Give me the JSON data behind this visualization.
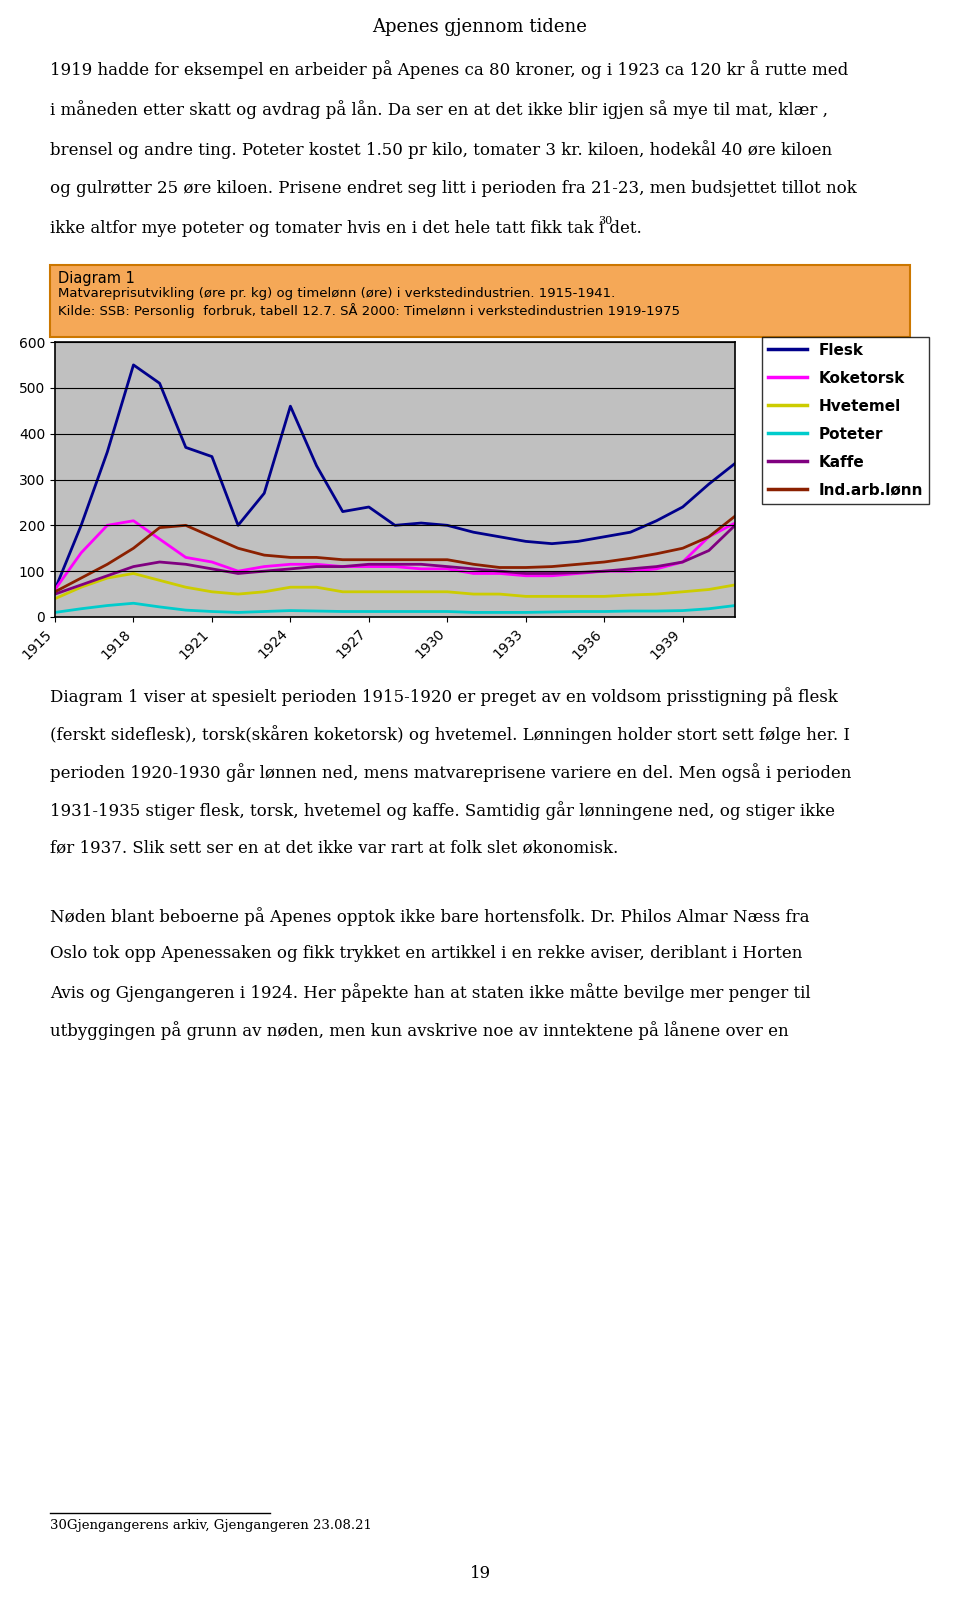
{
  "years": [
    1915,
    1916,
    1917,
    1918,
    1919,
    1920,
    1921,
    1922,
    1923,
    1924,
    1925,
    1926,
    1927,
    1928,
    1929,
    1930,
    1931,
    1932,
    1933,
    1934,
    1935,
    1936,
    1937,
    1938,
    1939,
    1940,
    1941
  ],
  "flesk": [
    60,
    200,
    360,
    550,
    510,
    370,
    350,
    200,
    270,
    460,
    330,
    230,
    240,
    200,
    205,
    200,
    185,
    175,
    165,
    160,
    165,
    175,
    185,
    210,
    240,
    290,
    335
  ],
  "koketorsk": [
    60,
    140,
    200,
    210,
    170,
    130,
    120,
    100,
    110,
    115,
    115,
    110,
    110,
    110,
    105,
    105,
    95,
    95,
    90,
    90,
    95,
    100,
    100,
    105,
    120,
    175,
    205
  ],
  "hvetemel": [
    40,
    65,
    85,
    95,
    80,
    65,
    55,
    50,
    55,
    65,
    65,
    55,
    55,
    55,
    55,
    55,
    50,
    50,
    45,
    45,
    45,
    45,
    48,
    50,
    55,
    60,
    70
  ],
  "poteter": [
    10,
    18,
    25,
    30,
    22,
    15,
    12,
    10,
    12,
    14,
    13,
    12,
    12,
    12,
    12,
    12,
    10,
    10,
    10,
    11,
    12,
    12,
    13,
    13,
    14,
    18,
    25
  ],
  "kaffe": [
    50,
    70,
    90,
    110,
    120,
    115,
    105,
    95,
    100,
    105,
    110,
    110,
    115,
    115,
    115,
    110,
    105,
    100,
    95,
    95,
    97,
    100,
    105,
    110,
    120,
    145,
    200
  ],
  "ind_arb_lonn": [
    55,
    85,
    115,
    150,
    195,
    200,
    175,
    150,
    135,
    130,
    130,
    125,
    125,
    125,
    125,
    125,
    115,
    108,
    108,
    110,
    115,
    120,
    128,
    138,
    150,
    175,
    220
  ],
  "ylim": [
    0,
    600
  ],
  "yticks": [
    0,
    100,
    200,
    300,
    400,
    500,
    600
  ],
  "title_box_text1": "Diagram 1",
  "title_box_text2": "Matvareprisutvikling (øre pr. kg) og timelønn (øre) i verkstedindustrien. 1915-1941.",
  "title_box_text3": "Kilde: SSB: Personlig  forbruk, tabell 12.7. SÅ 2000: Timelønn i verkstedindustrien 1919-1975",
  "page_title": "Apenes gjennom tidene",
  "legend_labels": [
    "Flesk",
    "Koketorsk",
    "Hvetemel",
    "Poteter",
    "Kaffe",
    "Ind.arb.lønn"
  ],
  "line_colors": [
    "#00008B",
    "#FF00FF",
    "#CCCC00",
    "#00CCCC",
    "#800080",
    "#8B2000"
  ],
  "line_styles": [
    "-",
    "-",
    "-",
    "-",
    "-",
    "-"
  ],
  "bg_color": "#C0C0C0",
  "box_bg_color": "#F5A857",
  "chart_bg_color": "#C0C0C0",
  "page_bg_color": "#FFFFFF",
  "body_texts": [
    "1919 hadde for eksempel en arbeider på Apenes ca 80 kroner, og i 1923 ca 120 kr å rutte med",
    "i måneden etter skatt og avdrag på lån. Da ser en at det ikke blir igjen så mye til mat, klær ,",
    "brensel og andre ting. Poteter kostet 1.50 pr kilo, tomater 3 kr. kiloen, hodekål 40 øre kiloen",
    "og gulrøtter 25 øre kiloen. Prisene endret seg litt i perioden fra 21-23, men budsjettet tillot nok",
    "ikke altfor mye poteter og tomater hvis en i det hele tatt fikk tak i det."
  ],
  "superscript_after_last_body": "30",
  "below_chart_texts": [
    "Diagram 1 viser at spesielt perioden 1915-1920 er preget av en voldsom prisstigning på flesk",
    "(ferskt sideflesk), torsk(skåren koketorsk) og hvetemel. Lønningen holder stort sett følge her. I",
    "perioden 1920-1930 går lønnen ned, mens matvareprisene variere en del. Men også i perioden",
    "1931-1935 stiger flesk, torsk, hvetemel og kaffe. Samtidig går lønningene ned, og stiger ikke",
    "før 1937. Slik sett ser en at det ikke var rart at folk slet økonomisk."
  ],
  "next_para_texts": [
    "Nøden blant beboerne på Apenes opptok ikke bare hortensfolk. Dr. Philos Almar Næss fra",
    "Oslo tok opp Apenessaken og fikk trykket en artikkel i en rekke aviser, deriblant i Horten",
    "Avis og Gjengangeren i 1924. Her påpekte han at staten ikke måtte bevilge mer penger til",
    "utbyggingen på grunn av nøden, men kun avskrive noe av inntektene på lånene over en"
  ],
  "footnote": "30Gjengangerens arkiv, Gjengangeren 23.08.21",
  "page_number": "19"
}
